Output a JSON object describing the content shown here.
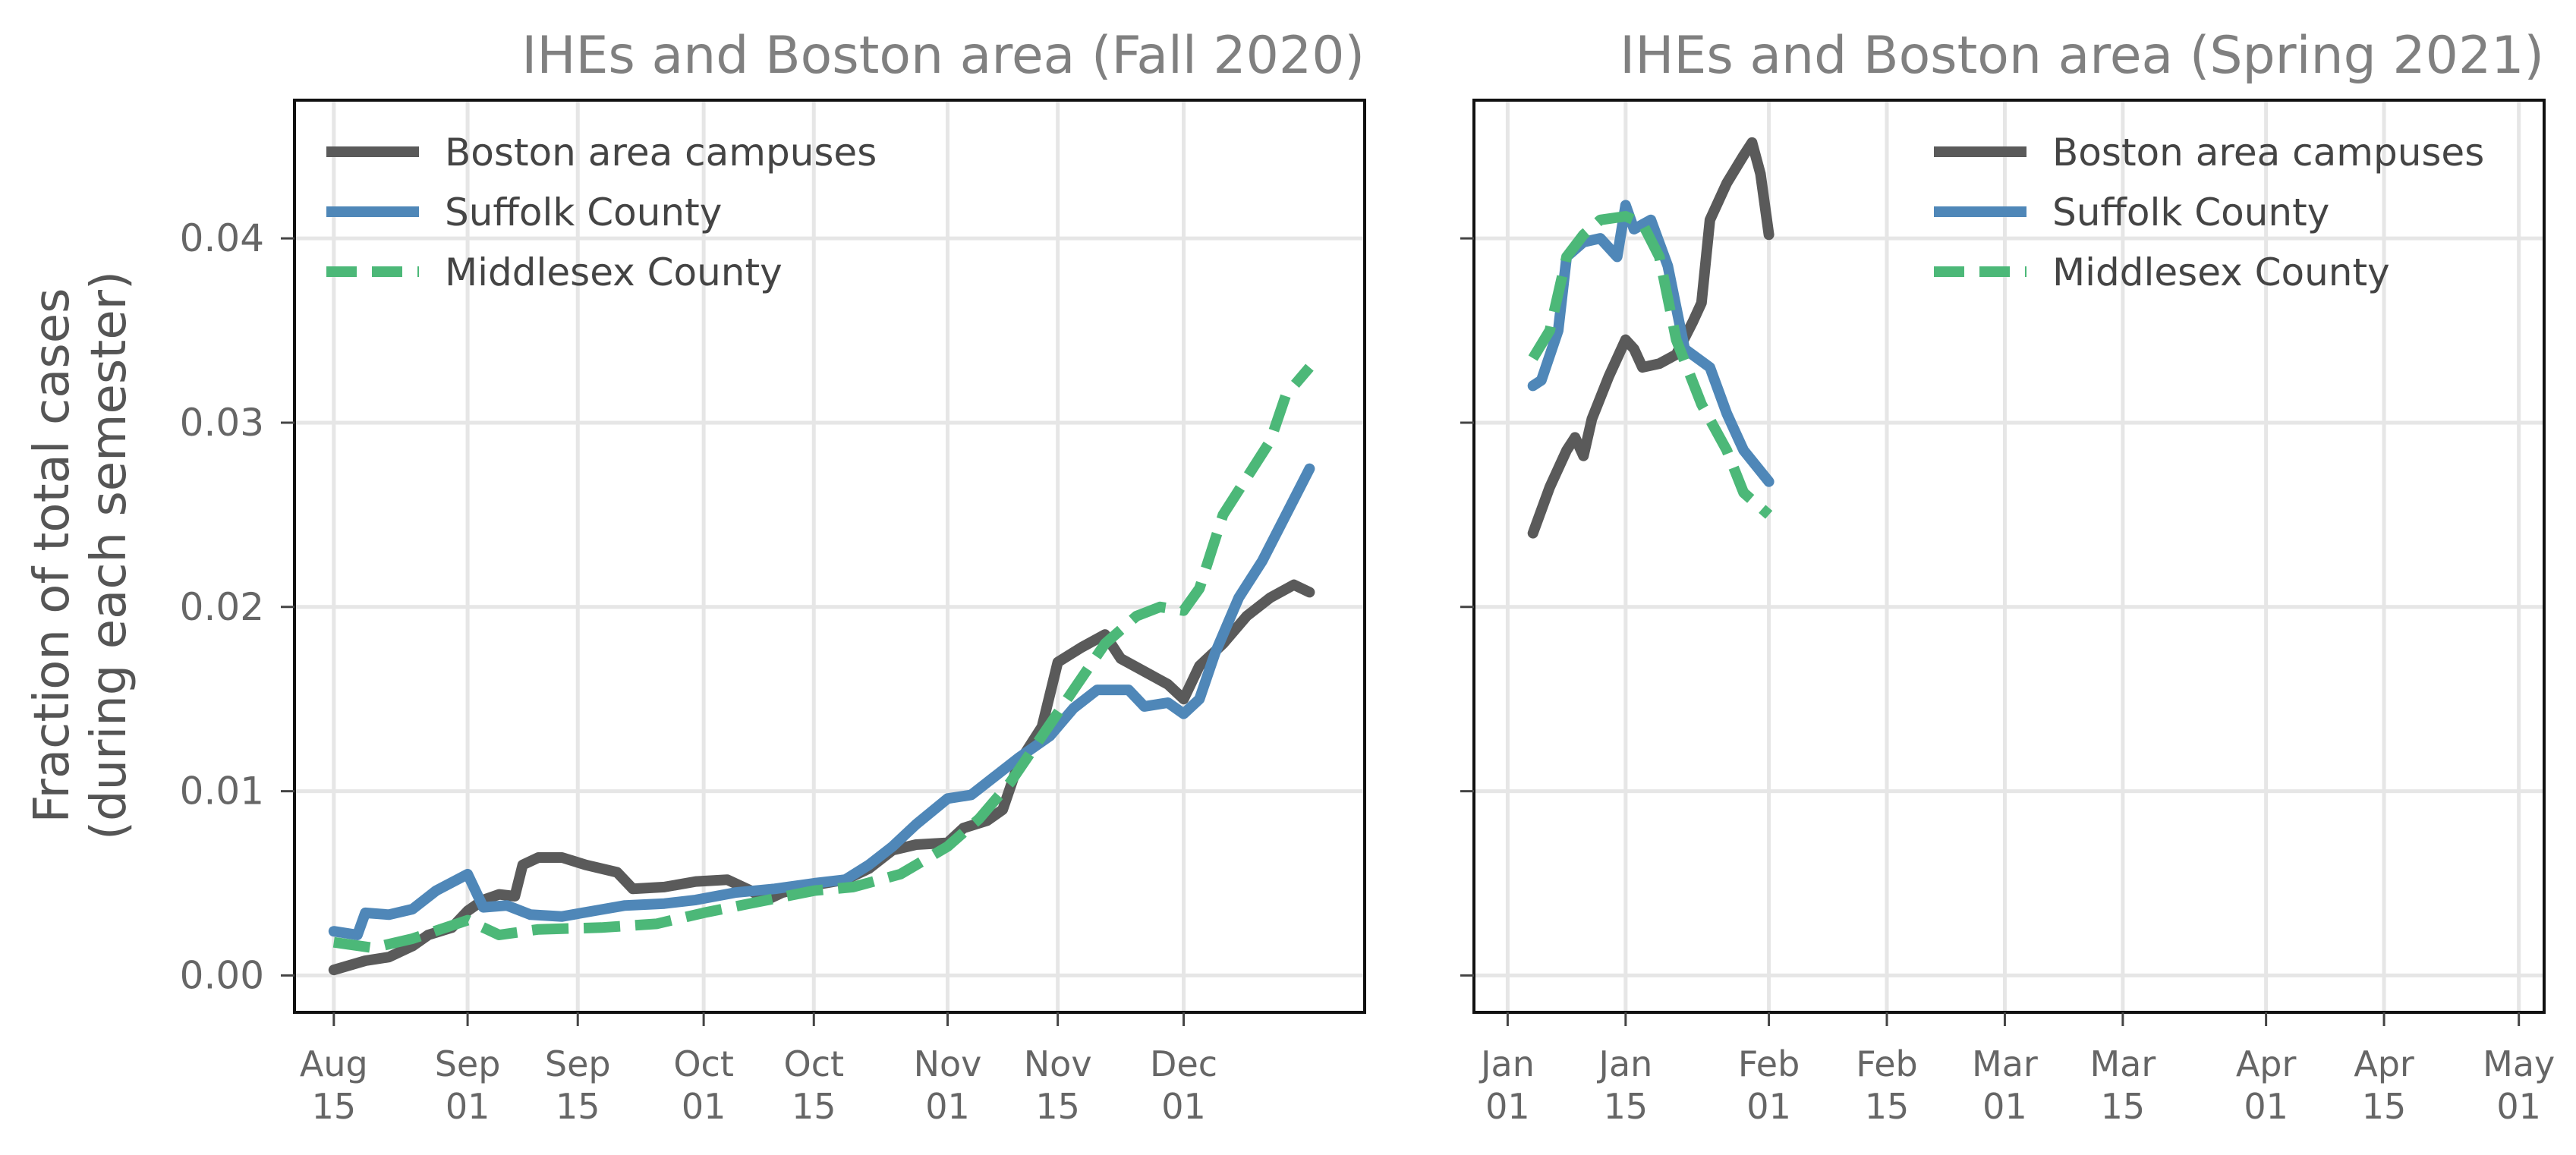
{
  "colors": {
    "campus": "#5a5a5a",
    "suffolk": "#4f87b8",
    "middlesex": "#4cb878",
    "title": "#808080",
    "grid": "#e6e6e6"
  },
  "ylabel_line1": "Fraction of total cases",
  "ylabel_line2": "(during each semester)",
  "chart_data": [
    {
      "type": "line",
      "title": "IHEs and Boston area (Fall 2020)",
      "xlabel": "",
      "ylabel": "Fraction of total cases (during each semester)",
      "ylim": [
        -0.002,
        0.0475
      ],
      "y_ticks": [
        "0.00",
        "0.01",
        "0.02",
        "0.03",
        "0.04"
      ],
      "y_tick_values": [
        0,
        0.01,
        0.02,
        0.03,
        0.04
      ],
      "xlim": [
        "2020-08-10",
        "2020-12-24"
      ],
      "x_ticks": [
        {
          "date": "2020-08-15",
          "label": [
            "Aug",
            "15"
          ]
        },
        {
          "date": "2020-09-01",
          "label": [
            "Sep",
            "01"
          ]
        },
        {
          "date": "2020-09-15",
          "label": [
            "Sep",
            "15"
          ]
        },
        {
          "date": "2020-10-01",
          "label": [
            "Oct",
            "01"
          ]
        },
        {
          "date": "2020-10-15",
          "label": [
            "Oct",
            "15"
          ]
        },
        {
          "date": "2020-11-01",
          "label": [
            "Nov",
            "01"
          ]
        },
        {
          "date": "2020-11-15",
          "label": [
            "Nov",
            "15"
          ]
        },
        {
          "date": "2020-12-01",
          "label": [
            "Dec",
            "01"
          ]
        }
      ],
      "grid": true,
      "legend_placement": "top-left",
      "series": [
        {
          "name": "Boston area campuses",
          "key": "campus",
          "style": "solid",
          "points": [
            [
              "2020-08-15",
              0.0003
            ],
            [
              "2020-08-19",
              0.0008
            ],
            [
              "2020-08-22",
              0.001
            ],
            [
              "2020-08-25",
              0.0016
            ],
            [
              "2020-08-27",
              0.0022
            ],
            [
              "2020-08-30",
              0.0026
            ],
            [
              "2020-09-01",
              0.0035
            ],
            [
              "2020-09-03",
              0.0041
            ],
            [
              "2020-09-05",
              0.0044
            ],
            [
              "2020-09-07",
              0.0043
            ],
            [
              "2020-09-08",
              0.006
            ],
            [
              "2020-09-10",
              0.0064
            ],
            [
              "2020-09-13",
              0.0064
            ],
            [
              "2020-09-16",
              0.006
            ],
            [
              "2020-09-20",
              0.0056
            ],
            [
              "2020-09-22",
              0.0047
            ],
            [
              "2020-09-26",
              0.0048
            ],
            [
              "2020-09-30",
              0.0051
            ],
            [
              "2020-10-04",
              0.0052
            ],
            [
              "2020-10-07",
              0.0046
            ],
            [
              "2020-10-09",
              0.0041
            ],
            [
              "2020-10-11",
              0.0045
            ],
            [
              "2020-10-15",
              0.0049
            ],
            [
              "2020-10-19",
              0.0052
            ],
            [
              "2020-10-22",
              0.0058
            ],
            [
              "2020-10-25",
              0.0068
            ],
            [
              "2020-10-28",
              0.0071
            ],
            [
              "2020-11-01",
              0.0072
            ],
            [
              "2020-11-03",
              0.008
            ],
            [
              "2020-11-06",
              0.0084
            ],
            [
              "2020-11-08",
              0.009
            ],
            [
              "2020-11-10",
              0.0115
            ],
            [
              "2020-11-13",
              0.0135
            ],
            [
              "2020-11-15",
              0.017
            ],
            [
              "2020-11-18",
              0.0178
            ],
            [
              "2020-11-21",
              0.0185
            ],
            [
              "2020-11-23",
              0.0172
            ],
            [
              "2020-11-26",
              0.0165
            ],
            [
              "2020-11-29",
              0.0158
            ],
            [
              "2020-12-01",
              0.015
            ],
            [
              "2020-12-03",
              0.0168
            ],
            [
              "2020-12-06",
              0.018
            ],
            [
              "2020-12-09",
              0.0195
            ],
            [
              "2020-12-12",
              0.0205
            ],
            [
              "2020-12-15",
              0.0212
            ],
            [
              "2020-12-17",
              0.0208
            ]
          ]
        },
        {
          "name": "Suffolk County",
          "key": "suffolk",
          "style": "solid",
          "points": [
            [
              "2020-08-15",
              0.0024
            ],
            [
              "2020-08-18",
              0.0022
            ],
            [
              "2020-08-19",
              0.0034
            ],
            [
              "2020-08-22",
              0.0033
            ],
            [
              "2020-08-25",
              0.0036
            ],
            [
              "2020-08-28",
              0.0046
            ],
            [
              "2020-09-01",
              0.0055
            ],
            [
              "2020-09-03",
              0.0037
            ],
            [
              "2020-09-06",
              0.0038
            ],
            [
              "2020-09-09",
              0.0033
            ],
            [
              "2020-09-13",
              0.0032
            ],
            [
              "2020-09-17",
              0.0035
            ],
            [
              "2020-09-21",
              0.0038
            ],
            [
              "2020-09-26",
              0.0039
            ],
            [
              "2020-09-30",
              0.0041
            ],
            [
              "2020-10-05",
              0.0045
            ],
            [
              "2020-10-10",
              0.0047
            ],
            [
              "2020-10-15",
              0.005
            ],
            [
              "2020-10-19",
              0.0052
            ],
            [
              "2020-10-22",
              0.006
            ],
            [
              "2020-10-25",
              0.007
            ],
            [
              "2020-10-28",
              0.0082
            ],
            [
              "2020-11-01",
              0.0096
            ],
            [
              "2020-11-04",
              0.0098
            ],
            [
              "2020-11-07",
              0.0108
            ],
            [
              "2020-11-10",
              0.0118
            ],
            [
              "2020-11-14",
              0.013
            ],
            [
              "2020-11-17",
              0.0145
            ],
            [
              "2020-11-20",
              0.0155
            ],
            [
              "2020-11-24",
              0.0155
            ],
            [
              "2020-11-26",
              0.0146
            ],
            [
              "2020-11-29",
              0.0148
            ],
            [
              "2020-12-01",
              0.0142
            ],
            [
              "2020-12-03",
              0.015
            ],
            [
              "2020-12-05",
              0.0175
            ],
            [
              "2020-12-08",
              0.0205
            ],
            [
              "2020-12-11",
              0.0225
            ],
            [
              "2020-12-14",
              0.025
            ],
            [
              "2020-12-17",
              0.0275
            ]
          ]
        },
        {
          "name": "Middlesex County",
          "key": "middlesex",
          "style": "dashed",
          "points": [
            [
              "2020-08-15",
              0.0018
            ],
            [
              "2020-08-20",
              0.0015
            ],
            [
              "2020-08-25",
              0.002
            ],
            [
              "2020-09-01",
              0.003
            ],
            [
              "2020-09-05",
              0.0022
            ],
            [
              "2020-09-10",
              0.0025
            ],
            [
              "2020-09-18",
              0.0026
            ],
            [
              "2020-09-25",
              0.0028
            ],
            [
              "2020-10-01",
              0.0034
            ],
            [
              "2020-10-08",
              0.004
            ],
            [
              "2020-10-15",
              0.0046
            ],
            [
              "2020-10-20",
              0.0048
            ],
            [
              "2020-10-26",
              0.0055
            ],
            [
              "2020-11-01",
              0.007
            ],
            [
              "2020-11-05",
              0.0085
            ],
            [
              "2020-11-09",
              0.0105
            ],
            [
              "2020-11-13",
              0.013
            ],
            [
              "2020-11-17",
              0.0155
            ],
            [
              "2020-11-21",
              0.018
            ],
            [
              "2020-11-25",
              0.0195
            ],
            [
              "2020-11-28",
              0.02
            ],
            [
              "2020-12-01",
              0.0198
            ],
            [
              "2020-12-03",
              0.021
            ],
            [
              "2020-12-06",
              0.025
            ],
            [
              "2020-12-09",
              0.027
            ],
            [
              "2020-12-12",
              0.029
            ],
            [
              "2020-12-14",
              0.0315
            ],
            [
              "2020-12-17",
              0.033
            ]
          ]
        }
      ]
    },
    {
      "type": "line",
      "title": "IHEs and Boston area (Spring 2021)",
      "xlabel": "",
      "ylabel": "",
      "ylim": [
        -0.002,
        0.0475
      ],
      "y_ticks": [
        "",
        "",
        "",
        "",
        ""
      ],
      "y_tick_values": [
        0,
        0.01,
        0.02,
        0.03,
        0.04
      ],
      "xlim": [
        "2020-12-28",
        "2021-05-04"
      ],
      "x_ticks": [
        {
          "date": "2021-01-01",
          "label": [
            "Jan",
            "01"
          ]
        },
        {
          "date": "2021-01-15",
          "label": [
            "Jan",
            "15"
          ]
        },
        {
          "date": "2021-02-01",
          "label": [
            "Feb",
            "01"
          ]
        },
        {
          "date": "2021-02-15",
          "label": [
            "Feb",
            "15"
          ]
        },
        {
          "date": "2021-03-01",
          "label": [
            "Mar",
            "01"
          ]
        },
        {
          "date": "2021-03-15",
          "label": [
            "Mar",
            "15"
          ]
        },
        {
          "date": "2021-04-01",
          "label": [
            "Apr",
            "01"
          ]
        },
        {
          "date": "2021-04-15",
          "label": [
            "Apr",
            "15"
          ]
        },
        {
          "date": "2021-05-01",
          "label": [
            "May",
            "01"
          ]
        }
      ],
      "grid": true,
      "legend_placement": "top-right",
      "series": [
        {
          "name": "Boston area campuses",
          "key": "campus",
          "style": "solid",
          "points": [
            [
              "2021-01-04",
              0.024
            ],
            [
              "2021-01-06",
              0.0265
            ],
            [
              "2021-01-08",
              0.0285
            ],
            [
              "2021-01-09",
              0.0292
            ],
            [
              "2021-01-10",
              0.0282
            ],
            [
              "2021-01-11",
              0.0302
            ],
            [
              "2021-01-13",
              0.0325
            ],
            [
              "2021-01-15",
              0.0345
            ],
            [
              "2021-01-16",
              0.034
            ],
            [
              "2021-01-17",
              0.033
            ],
            [
              "2021-01-19",
              0.0332
            ],
            [
              "2021-01-21",
              0.0337
            ],
            [
              "2021-01-23",
              0.0355
            ],
            [
              "2021-01-24",
              0.0365
            ],
            [
              "2021-01-25",
              0.041
            ],
            [
              "2021-01-27",
              0.043
            ],
            [
              "2021-01-29",
              0.0445
            ],
            [
              "2021-01-30",
              0.0452
            ],
            [
              "2021-01-31",
              0.0435
            ],
            [
              "2021-02-01",
              0.0402
            ]
          ]
        },
        {
          "name": "Suffolk County",
          "key": "suffolk",
          "style": "solid",
          "points": [
            [
              "2021-01-04",
              0.032
            ],
            [
              "2021-01-05",
              0.0323
            ],
            [
              "2021-01-07",
              0.035
            ],
            [
              "2021-01-08",
              0.039
            ],
            [
              "2021-01-10",
              0.0398
            ],
            [
              "2021-01-12",
              0.04
            ],
            [
              "2021-01-14",
              0.039
            ],
            [
              "2021-01-15",
              0.0418
            ],
            [
              "2021-01-16",
              0.0405
            ],
            [
              "2021-01-18",
              0.041
            ],
            [
              "2021-01-20",
              0.0385
            ],
            [
              "2021-01-22",
              0.034
            ],
            [
              "2021-01-25",
              0.033
            ],
            [
              "2021-01-27",
              0.0305
            ],
            [
              "2021-01-29",
              0.0285
            ],
            [
              "2021-02-01",
              0.0268
            ]
          ]
        },
        {
          "name": "Middlesex County",
          "key": "middlesex",
          "style": "dashed",
          "points": [
            [
              "2021-01-04",
              0.0335
            ],
            [
              "2021-01-06",
              0.035
            ],
            [
              "2021-01-08",
              0.039
            ],
            [
              "2021-01-10",
              0.0402
            ],
            [
              "2021-01-12",
              0.041
            ],
            [
              "2021-01-15",
              0.0412
            ],
            [
              "2021-01-17",
              0.0408
            ],
            [
              "2021-01-19",
              0.039
            ],
            [
              "2021-01-21",
              0.0345
            ],
            [
              "2021-01-24",
              0.031
            ],
            [
              "2021-01-27",
              0.0285
            ],
            [
              "2021-01-29",
              0.0262
            ],
            [
              "2021-02-01",
              0.025
            ]
          ]
        }
      ]
    }
  ]
}
